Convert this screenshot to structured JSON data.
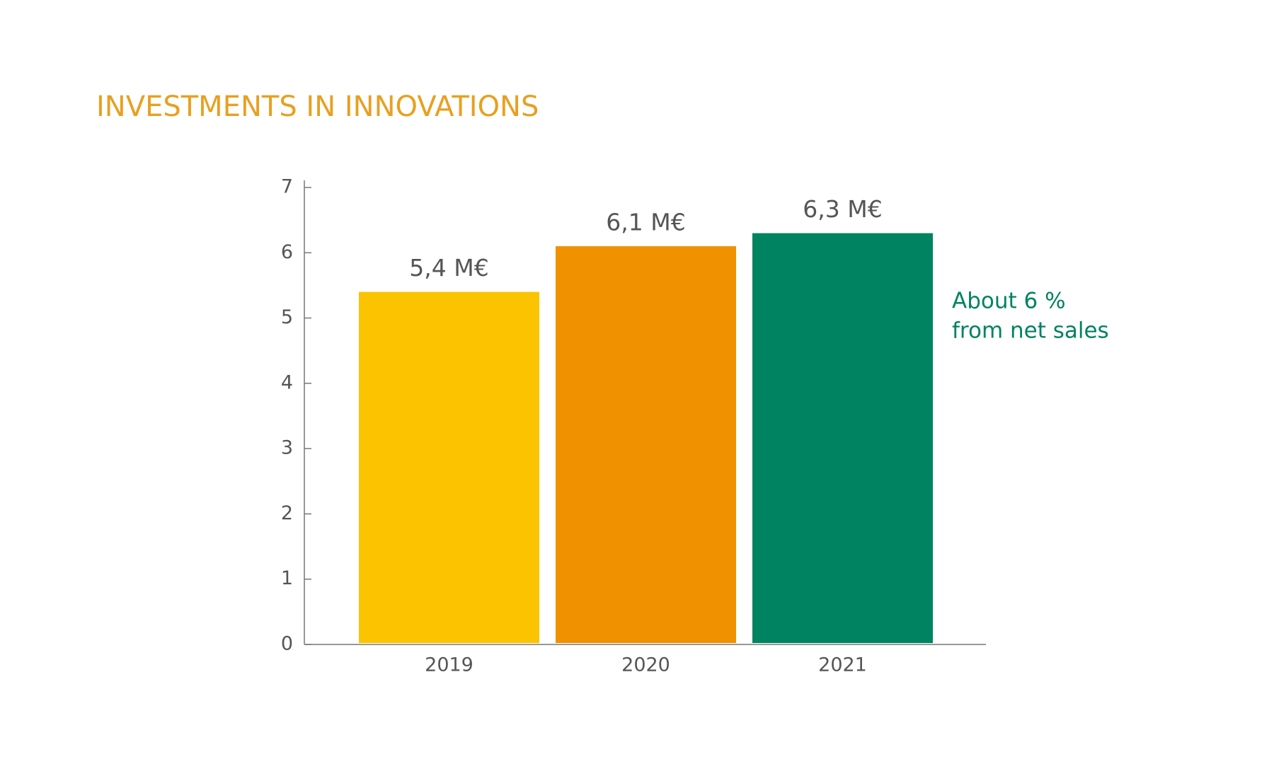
{
  "chart_data": {
    "type": "bar",
    "title": "INVESTMENTS IN INNOVATIONS",
    "categories": [
      "2019",
      "2020",
      "2021"
    ],
    "values": [
      5.4,
      6.1,
      6.3
    ],
    "value_labels": [
      "5,4 M€",
      "6,1 M€",
      "6,3 M€"
    ],
    "colors": [
      "#fbc300",
      "#f09100",
      "#008360"
    ],
    "ylim": [
      0,
      7
    ],
    "yticks": [
      0,
      1,
      2,
      3,
      4,
      5,
      6,
      7
    ],
    "annotation": [
      "About 6 %",
      "from net sales"
    ]
  }
}
